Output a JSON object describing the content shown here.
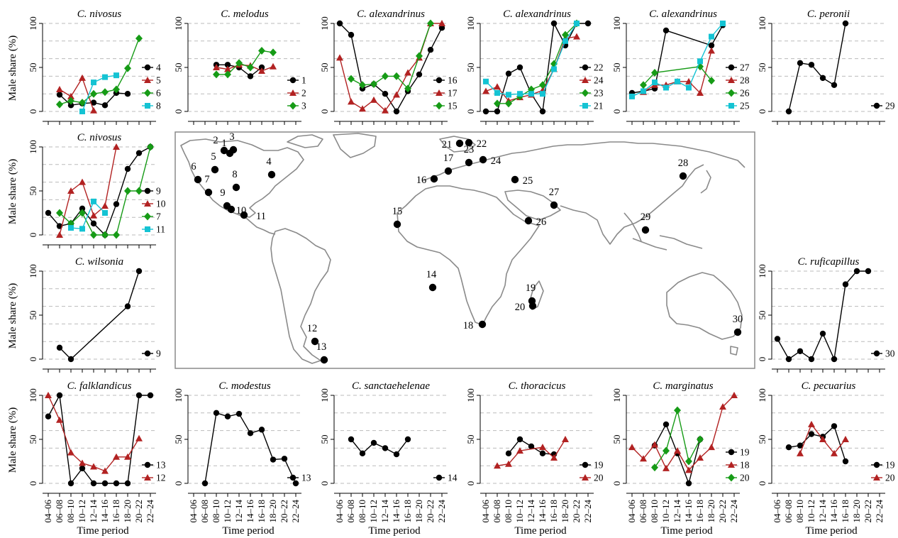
{
  "colors": {
    "black": "#000000",
    "red": "#b22222",
    "green": "#169b16",
    "cyan": "#14c3d3",
    "grid": "#bbbbbb",
    "land": "#8a8a8a"
  },
  "axis": {
    "ylabel": "Male share (%)",
    "xlabel": "Time period",
    "yticks": [
      "0",
      "50",
      "100"
    ],
    "xticks": [
      "04–06",
      "06–08",
      "08–10",
      "10–12",
      "12–14",
      "14–16",
      "16–18",
      "18–20",
      "20–22",
      "22–24"
    ]
  },
  "map_sites": [
    {
      "label": "1"
    },
    {
      "label": "2"
    },
    {
      "label": "3"
    },
    {
      "label": "4"
    },
    {
      "label": "5"
    },
    {
      "label": "6"
    },
    {
      "label": "7"
    },
    {
      "label": "8"
    },
    {
      "label": "9"
    },
    {
      "label": "10"
    },
    {
      "label": "11"
    },
    {
      "label": "12"
    },
    {
      "label": "13"
    },
    {
      "label": "14"
    },
    {
      "label": "15"
    },
    {
      "label": "16"
    },
    {
      "label": "17"
    },
    {
      "label": "18"
    },
    {
      "label": "19"
    },
    {
      "label": "20"
    },
    {
      "label": "21"
    },
    {
      "label": "22"
    },
    {
      "label": "23"
    },
    {
      "label": "24"
    },
    {
      "label": "25"
    },
    {
      "label": "26"
    },
    {
      "label": "27"
    },
    {
      "label": "28"
    },
    {
      "label": "29"
    },
    {
      "label": "30"
    }
  ],
  "chart_data": [
    {
      "type": "line",
      "title": "C. nivosus",
      "ylim": [
        0,
        100
      ],
      "series": [
        {
          "name": "4",
          "color": "black",
          "marker": "circle",
          "values": [
            null,
            19,
            7,
            9,
            10,
            7,
            21,
            20,
            null,
            null
          ]
        },
        {
          "name": "5",
          "color": "red",
          "marker": "triangle",
          "values": [
            null,
            25,
            17,
            38,
            1,
            null,
            null,
            null,
            null,
            null
          ]
        },
        {
          "name": "6",
          "color": "green",
          "marker": "diamond",
          "values": [
            null,
            8,
            12,
            10,
            20,
            22,
            25,
            49,
            83,
            null
          ]
        },
        {
          "name": "8",
          "color": "cyan",
          "marker": "square",
          "values": [
            null,
            null,
            null,
            0,
            33,
            39,
            41,
            null,
            null,
            null
          ]
        }
      ]
    },
    {
      "type": "line",
      "title": "C. melodus",
      "ylim": [
        0,
        100
      ],
      "series": [
        {
          "name": "1",
          "color": "black",
          "marker": "circle",
          "values": [
            null,
            null,
            53,
            53,
            50,
            40,
            50,
            null,
            null,
            null
          ]
        },
        {
          "name": "2",
          "color": "red",
          "marker": "triangle",
          "values": [
            null,
            null,
            50,
            48,
            53,
            52,
            46,
            51,
            null,
            null
          ]
        },
        {
          "name": "3",
          "color": "green",
          "marker": "diamond",
          "values": [
            null,
            null,
            42,
            42,
            55,
            50,
            69,
            67,
            null,
            null
          ]
        }
      ]
    },
    {
      "type": "line",
      "title": "C. alexandrinus",
      "ylim": [
        0,
        100
      ],
      "series": [
        {
          "name": "16",
          "color": "black",
          "marker": "circle",
          "values": [
            100,
            87,
            26,
            31,
            20,
            0,
            23,
            42,
            70,
            95
          ]
        },
        {
          "name": "17",
          "color": "red",
          "marker": "triangle",
          "values": [
            61,
            11,
            3,
            13,
            1,
            19,
            44,
            61,
            100,
            100
          ]
        },
        {
          "name": "15",
          "color": "green",
          "marker": "diamond",
          "values": [
            null,
            37,
            30,
            31,
            40,
            40,
            26,
            63,
            100,
            null
          ]
        }
      ]
    },
    {
      "type": "line",
      "title": "C. alexandrinus",
      "ylim": [
        0,
        100
      ],
      "series": [
        {
          "name": "22",
          "color": "black",
          "marker": "circle",
          "values": [
            0,
            0,
            43,
            50,
            20,
            0,
            100,
            75,
            100,
            100
          ]
        },
        {
          "name": "24",
          "color": "red",
          "marker": "triangle",
          "values": [
            23,
            28,
            12,
            16,
            19,
            24,
            48,
            83,
            85,
            null
          ]
        },
        {
          "name": "23",
          "color": "green",
          "marker": "diamond",
          "values": [
            null,
            9,
            9,
            17,
            25,
            30,
            54,
            87,
            100,
            null
          ]
        },
        {
          "name": "21",
          "color": "cyan",
          "marker": "square",
          "values": [
            34,
            21,
            19,
            20,
            20,
            20,
            48,
            80,
            100,
            null
          ]
        }
      ]
    },
    {
      "type": "line",
      "title": "C. alexandrinus",
      "ylim": [
        0,
        100
      ],
      "series": [
        {
          "name": "27",
          "color": "black",
          "marker": "circle",
          "values": [
            21,
            23,
            26,
            92,
            null,
            null,
            null,
            75,
            98,
            null
          ]
        },
        {
          "name": "28",
          "color": "red",
          "marker": "triangle",
          "values": [
            null,
            22,
            30,
            30,
            34,
            34,
            21,
            69,
            null,
            null
          ]
        },
        {
          "name": "26",
          "color": "green",
          "marker": "diamond",
          "values": [
            null,
            30,
            44,
            null,
            null,
            null,
            51,
            35,
            null,
            null
          ]
        },
        {
          "name": "25",
          "color": "cyan",
          "marker": "square",
          "values": [
            17,
            23,
            33,
            27,
            34,
            27,
            57,
            85,
            100,
            null
          ]
        }
      ]
    },
    {
      "type": "line",
      "title": "C. peronii",
      "ylim": [
        0,
        100
      ],
      "series": [
        {
          "name": "29",
          "color": "black",
          "marker": "circle",
          "values": [
            null,
            0,
            55,
            53,
            38,
            30,
            100,
            null,
            null,
            null
          ]
        }
      ]
    },
    {
      "type": "line",
      "title": "C. nivosus",
      "ylim": [
        0,
        100
      ],
      "series": [
        {
          "name": "9",
          "color": "black",
          "marker": "circle",
          "values": [
            25,
            10,
            13,
            30,
            13,
            0,
            35,
            75,
            93,
            100
          ]
        },
        {
          "name": "10",
          "color": "red",
          "marker": "triangle",
          "values": [
            null,
            0,
            50,
            60,
            22,
            33,
            100,
            null,
            null,
            null
          ]
        },
        {
          "name": "7",
          "color": "green",
          "marker": "diamond",
          "values": [
            null,
            25,
            13,
            25,
            0,
            0,
            0,
            50,
            50,
            100
          ]
        },
        {
          "name": "11",
          "color": "cyan",
          "marker": "square",
          "values": [
            null,
            null,
            8,
            7,
            38,
            25,
            null,
            null,
            null,
            null
          ]
        }
      ]
    },
    {
      "type": "line",
      "title": "C. wilsonia",
      "ylim": [
        0,
        100
      ],
      "series": [
        {
          "name": "9",
          "color": "black",
          "marker": "circle",
          "values": [
            null,
            13,
            0,
            null,
            null,
            null,
            null,
            60,
            100,
            null
          ]
        }
      ]
    },
    {
      "type": "line",
      "title": "C. ruficapillus",
      "ylim": [
        0,
        100
      ],
      "series": [
        {
          "name": "30",
          "color": "black",
          "marker": "circle",
          "values": [
            23,
            0,
            9,
            0,
            29,
            0,
            85,
            100,
            100,
            null
          ]
        }
      ]
    },
    {
      "type": "line",
      "title": "C. falklandicus",
      "ylim": [
        0,
        100
      ],
      "series": [
        {
          "name": "13",
          "color": "black",
          "marker": "circle",
          "values": [
            76,
            100,
            0,
            17,
            0,
            0,
            0,
            0,
            100,
            100
          ]
        },
        {
          "name": "12",
          "color": "red",
          "marker": "triangle",
          "values": [
            100,
            72,
            35,
            23,
            19,
            14,
            30,
            30,
            51,
            null
          ]
        }
      ]
    },
    {
      "type": "line",
      "title": "C. modestus",
      "ylim": [
        0,
        100
      ],
      "series": [
        {
          "name": "13",
          "color": "black",
          "marker": "circle",
          "values": [
            null,
            0,
            80,
            76,
            79,
            57,
            61,
            27,
            28,
            0
          ]
        }
      ]
    },
    {
      "type": "line",
      "title": "C. sanctaehelenae",
      "ylim": [
        0,
        100
      ],
      "series": [
        {
          "name": "14",
          "color": "black",
          "marker": "circle",
          "values": [
            null,
            50,
            34,
            46,
            40,
            33,
            50,
            null,
            null,
            null
          ]
        }
      ]
    },
    {
      "type": "line",
      "title": "C. thoracicus",
      "ylim": [
        0,
        100
      ],
      "series": [
        {
          "name": "19",
          "color": "black",
          "marker": "circle",
          "values": [
            null,
            null,
            34,
            50,
            42,
            34,
            33,
            null,
            null,
            null
          ]
        },
        {
          "name": "20",
          "color": "red",
          "marker": "triangle",
          "values": [
            null,
            20,
            22,
            37,
            null,
            41,
            29,
            50,
            null,
            null
          ]
        }
      ]
    },
    {
      "type": "line",
      "title": "C. marginatus",
      "ylim": [
        0,
        100
      ],
      "series": [
        {
          "name": "19",
          "color": "black",
          "marker": "circle",
          "values": [
            null,
            null,
            43,
            67,
            34,
            0,
            50,
            null,
            null,
            null
          ]
        },
        {
          "name": "18",
          "color": "red",
          "marker": "triangle",
          "values": [
            41,
            28,
            44,
            17,
            37,
            15,
            29,
            41,
            87,
            100
          ]
        },
        {
          "name": "20",
          "color": "green",
          "marker": "diamond",
          "values": [
            null,
            null,
            18,
            37,
            83,
            25,
            50,
            null,
            null,
            null
          ]
        }
      ]
    },
    {
      "type": "line",
      "title": "C. pecuarius",
      "ylim": [
        0,
        100
      ],
      "series": [
        {
          "name": "19",
          "color": "black",
          "marker": "circle",
          "values": [
            null,
            41,
            43,
            56,
            53,
            65,
            25,
            null,
            null,
            null
          ]
        },
        {
          "name": "20",
          "color": "red",
          "marker": "triangle",
          "values": [
            null,
            null,
            34,
            67,
            50,
            34,
            50,
            null,
            null,
            null
          ]
        }
      ]
    }
  ]
}
